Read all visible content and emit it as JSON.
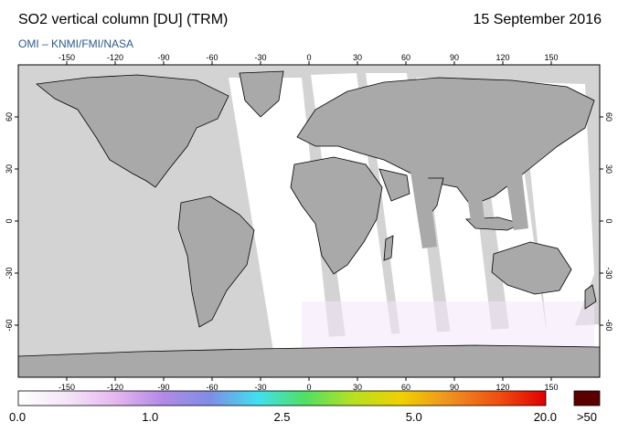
{
  "header": {
    "title": "SO2 vertical column [DU] (TRM)",
    "date": "15 September 2016",
    "credit": "OMI  –  KNMI/FMI/NASA"
  },
  "map": {
    "projection": "equirectangular",
    "lon_ticks": [
      "-150",
      "-120",
      "-90",
      "-60",
      "-30",
      "0",
      "30",
      "60",
      "90",
      "120",
      "150"
    ],
    "lat_ticks": [
      "60",
      "30",
      "0",
      "-30",
      "-60"
    ],
    "lon_range": [
      -180,
      180
    ],
    "lat_range": [
      -90,
      90
    ],
    "colors": {
      "land": "#a9a9a9",
      "no_data": "#d3d3d3",
      "swath": "#ffffff",
      "frame": "#000000"
    }
  },
  "colorbar": {
    "labels": [
      "0.0",
      "1.0",
      "2.5",
      "5.0",
      "20.0"
    ],
    "overflow_label": ">50",
    "colors": [
      "#ffffff",
      "#f4e6f8",
      "#e6b8f0",
      "#b38ae6",
      "#7f8de6",
      "#40e0f0",
      "#50e060",
      "#b8e020",
      "#f0d000",
      "#f09020",
      "#f05010",
      "#e00000"
    ],
    "overflow_color": "#5a0000"
  }
}
